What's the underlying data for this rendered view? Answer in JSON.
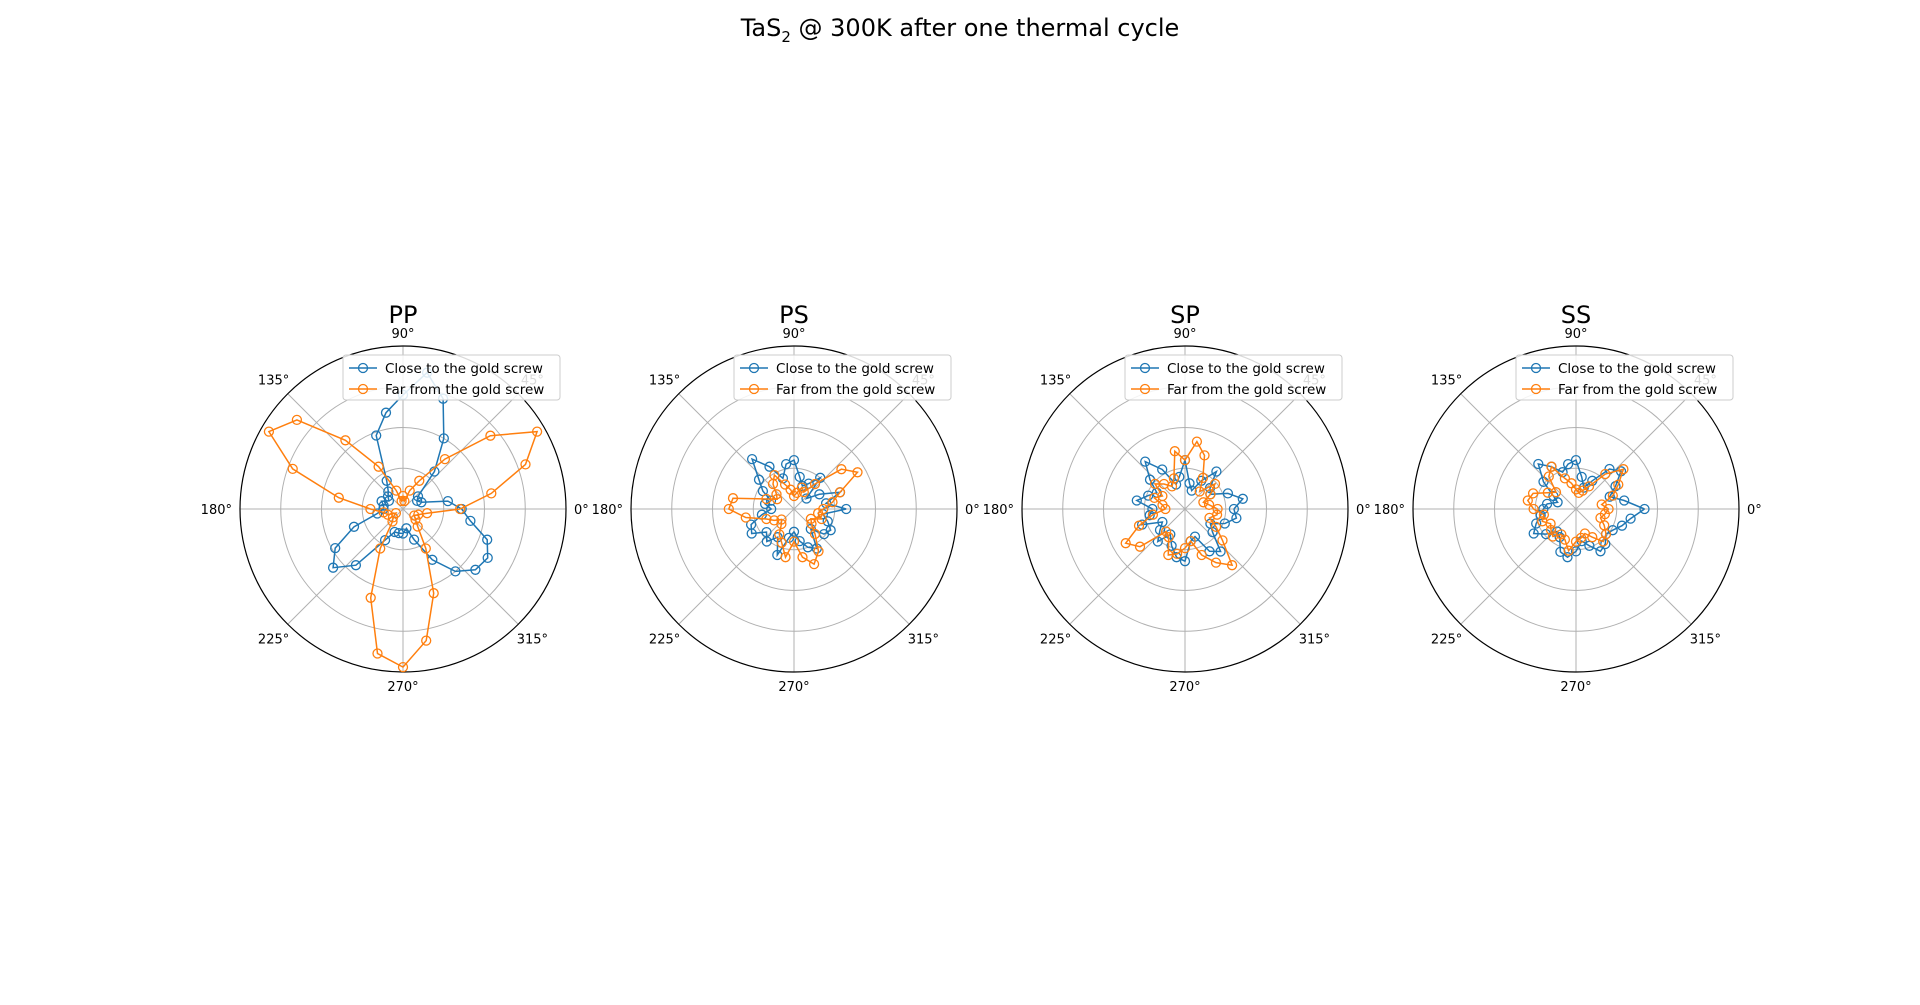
{
  "figure": {
    "title_main": "TaS",
    "title_sub": "2",
    "title_rest": " @ 300K after one thermal cycle"
  },
  "colors": {
    "close": "#1f77b4",
    "far": "#ff7f0e",
    "grid": "#b0b0b0"
  },
  "angle_tick_labels": [
    "0°",
    "45°",
    "90°",
    "135°",
    "180°",
    "225°",
    "270°",
    "315°"
  ],
  "chart_data": [
    {
      "type": "polar-line",
      "title": "PP",
      "angle_unit": "degrees",
      "r_max": 1.0,
      "r_grid": [
        0.25,
        0.5,
        0.75
      ],
      "grid": true,
      "legend_position": "top-right",
      "series": [
        {
          "name": "Close to the gold screw",
          "theta": [
            0,
            10,
            20,
            30,
            40,
            50,
            60,
            70,
            80,
            90,
            100,
            110,
            120,
            130,
            140,
            150,
            160,
            170,
            180,
            190,
            200,
            210,
            220,
            230,
            240,
            250,
            260,
            270,
            280,
            290,
            300,
            310,
            320,
            330,
            340,
            350
          ],
          "r": [
            0.36,
            0.28,
            0.12,
            0.1,
            0.12,
            0.3,
            0.5,
            0.72,
            0.85,
            0.7,
            0.6,
            0.48,
            0.2,
            0.14,
            0.12,
            0.1,
            0.14,
            0.12,
            0.12,
            0.16,
            0.32,
            0.48,
            0.56,
            0.45,
            0.22,
            0.15,
            0.15,
            0.15,
            0.12,
            0.2,
            0.36,
            0.5,
            0.58,
            0.6,
            0.55,
            0.42
          ]
        },
        {
          "name": "Far from the gold screw",
          "theta": [
            0,
            10,
            20,
            30,
            40,
            50,
            60,
            70,
            80,
            90,
            100,
            110,
            120,
            130,
            140,
            150,
            160,
            170,
            180,
            190,
            200,
            210,
            220,
            230,
            240,
            250,
            260,
            270,
            280,
            290,
            300,
            310,
            320,
            330,
            340,
            350
          ],
          "r": [
            0.35,
            0.55,
            0.8,
            0.95,
            0.7,
            0.4,
            0.2,
            0.12,
            0.05,
            0.08,
            0.05,
            0.12,
            0.3,
            0.55,
            0.85,
            0.95,
            0.72,
            0.4,
            0.2,
            0.12,
            0.1,
            0.05,
            0.08,
            0.1,
            0.28,
            0.58,
            0.9,
            0.97,
            0.82,
            0.55,
            0.28,
            0.14,
            0.1,
            0.08,
            0.1,
            0.15
          ]
        }
      ]
    },
    {
      "type": "polar-line",
      "title": "PS",
      "angle_unit": "degrees",
      "r_max": 1.0,
      "r_grid": [
        0.25,
        0.5,
        0.75
      ],
      "grid": true,
      "legend_position": "top-right",
      "series": [
        {
          "name": "Close to the gold screw",
          "theta": [
            0,
            10,
            20,
            30,
            40,
            50,
            60,
            70,
            80,
            90,
            100,
            110,
            120,
            130,
            140,
            150,
            160,
            170,
            180,
            190,
            200,
            210,
            220,
            230,
            240,
            250,
            260,
            270,
            280,
            290,
            300,
            310,
            320,
            330,
            340,
            350
          ],
          "r": [
            0.32,
            0.2,
            0.3,
            0.18,
            0.1,
            0.25,
            0.18,
            0.15,
            0.2,
            0.3,
            0.28,
            0.2,
            0.3,
            0.4,
            0.28,
            0.22,
            0.15,
            0.18,
            0.14,
            0.2,
            0.28,
            0.3,
            0.22,
            0.26,
            0.2,
            0.3,
            0.18,
            0.14,
            0.2,
            0.25,
            0.28,
            0.16,
            0.24,
            0.26,
            0.22,
            0.18
          ]
        },
        {
          "name": "Far from the gold screw",
          "theta": [
            0,
            10,
            20,
            30,
            40,
            50,
            60,
            70,
            80,
            90,
            100,
            110,
            120,
            130,
            140,
            150,
            160,
            170,
            180,
            190,
            200,
            210,
            220,
            230,
            240,
            250,
            260,
            270,
            280,
            290,
            300,
            310,
            320,
            330,
            340,
            350
          ],
          "r": [
            0.18,
            0.24,
            0.3,
            0.45,
            0.38,
            0.2,
            0.12,
            0.14,
            0.1,
            0.08,
            0.12,
            0.16,
            0.24,
            0.2,
            0.14,
            0.12,
            0.18,
            0.38,
            0.4,
            0.3,
            0.18,
            0.14,
            0.1,
            0.12,
            0.18,
            0.22,
            0.3,
            0.2,
            0.3,
            0.36,
            0.3,
            0.2,
            0.14,
            0.12,
            0.18,
            0.15
          ]
        }
      ]
    },
    {
      "type": "polar-line",
      "title": "SP",
      "angle_unit": "degrees",
      "r_max": 1.0,
      "r_grid": [
        0.25,
        0.5,
        0.75
      ],
      "grid": true,
      "legend_position": "top-right",
      "series": [
        {
          "name": "Close to the gold screw",
          "theta": [
            0,
            10,
            20,
            30,
            40,
            50,
            60,
            70,
            80,
            90,
            100,
            110,
            120,
            130,
            140,
            150,
            160,
            170,
            180,
            190,
            200,
            210,
            220,
            230,
            240,
            250,
            260,
            270,
            280,
            290,
            300,
            310,
            320,
            330,
            340,
            350
          ],
          "r": [
            0.3,
            0.36,
            0.28,
            0.18,
            0.2,
            0.3,
            0.2,
            0.12,
            0.16,
            0.3,
            0.2,
            0.16,
            0.28,
            0.38,
            0.28,
            0.2,
            0.24,
            0.3,
            0.2,
            0.22,
            0.28,
            0.16,
            0.2,
            0.26,
            0.18,
            0.24,
            0.3,
            0.32,
            0.2,
            0.18,
            0.3,
            0.34,
            0.22,
            0.18,
            0.26,
            0.32
          ]
        },
        {
          "name": "Far from the gold screw",
          "theta": [
            0,
            10,
            20,
            30,
            40,
            50,
            60,
            70,
            80,
            90,
            100,
            110,
            120,
            130,
            140,
            150,
            160,
            170,
            180,
            190,
            200,
            210,
            220,
            230,
            240,
            250,
            260,
            270,
            280,
            290,
            300,
            310,
            320,
            330,
            340,
            350
          ],
          "r": [
            0.2,
            0.15,
            0.12,
            0.18,
            0.24,
            0.14,
            0.22,
            0.35,
            0.42,
            0.3,
            0.36,
            0.2,
            0.16,
            0.2,
            0.24,
            0.16,
            0.2,
            0.14,
            0.12,
            0.2,
            0.3,
            0.42,
            0.36,
            0.18,
            0.2,
            0.3,
            0.28,
            0.24,
            0.2,
            0.3,
            0.38,
            0.45,
            0.3,
            0.22,
            0.16,
            0.2
          ]
        }
      ]
    },
    {
      "type": "polar-line",
      "title": "SS",
      "angle_unit": "degrees",
      "r_max": 1.0,
      "r_grid": [
        0.25,
        0.5,
        0.75
      ],
      "grid": true,
      "legend_position": "top-right",
      "series": [
        {
          "name": "Close to the gold screw",
          "theta": [
            0,
            10,
            20,
            30,
            40,
            50,
            60,
            70,
            80,
            90,
            100,
            110,
            120,
            130,
            140,
            150,
            160,
            170,
            180,
            190,
            200,
            210,
            220,
            230,
            240,
            250,
            260,
            270,
            280,
            290,
            300,
            310,
            320,
            330,
            340,
            350
          ],
          "r": [
            0.42,
            0.3,
            0.22,
            0.28,
            0.36,
            0.32,
            0.2,
            0.14,
            0.2,
            0.3,
            0.28,
            0.24,
            0.3,
            0.36,
            0.26,
            0.16,
            0.12,
            0.18,
            0.2,
            0.22,
            0.26,
            0.3,
            0.24,
            0.18,
            0.2,
            0.28,
            0.3,
            0.26,
            0.2,
            0.24,
            0.3,
            0.28,
            0.24,
            0.26,
            0.3,
            0.34
          ]
        },
        {
          "name": "Far from the gold screw",
          "theta": [
            0,
            10,
            20,
            30,
            40,
            50,
            60,
            70,
            80,
            90,
            100,
            110,
            120,
            130,
            140,
            150,
            160,
            170,
            180,
            190,
            200,
            210,
            220,
            230,
            240,
            250,
            260,
            270,
            280,
            290,
            300,
            310,
            320,
            330,
            340,
            350
          ],
          "r": [
            0.2,
            0.16,
            0.24,
            0.3,
            0.38,
            0.28,
            0.16,
            0.12,
            0.1,
            0.12,
            0.16,
            0.2,
            0.3,
            0.26,
            0.16,
            0.2,
            0.28,
            0.3,
            0.26,
            0.2,
            0.22,
            0.18,
            0.2,
            0.22,
            0.18,
            0.2,
            0.26,
            0.2,
            0.18,
            0.16,
            0.2,
            0.26,
            0.24,
            0.2,
            0.16,
            0.18
          ]
        }
      ]
    }
  ]
}
